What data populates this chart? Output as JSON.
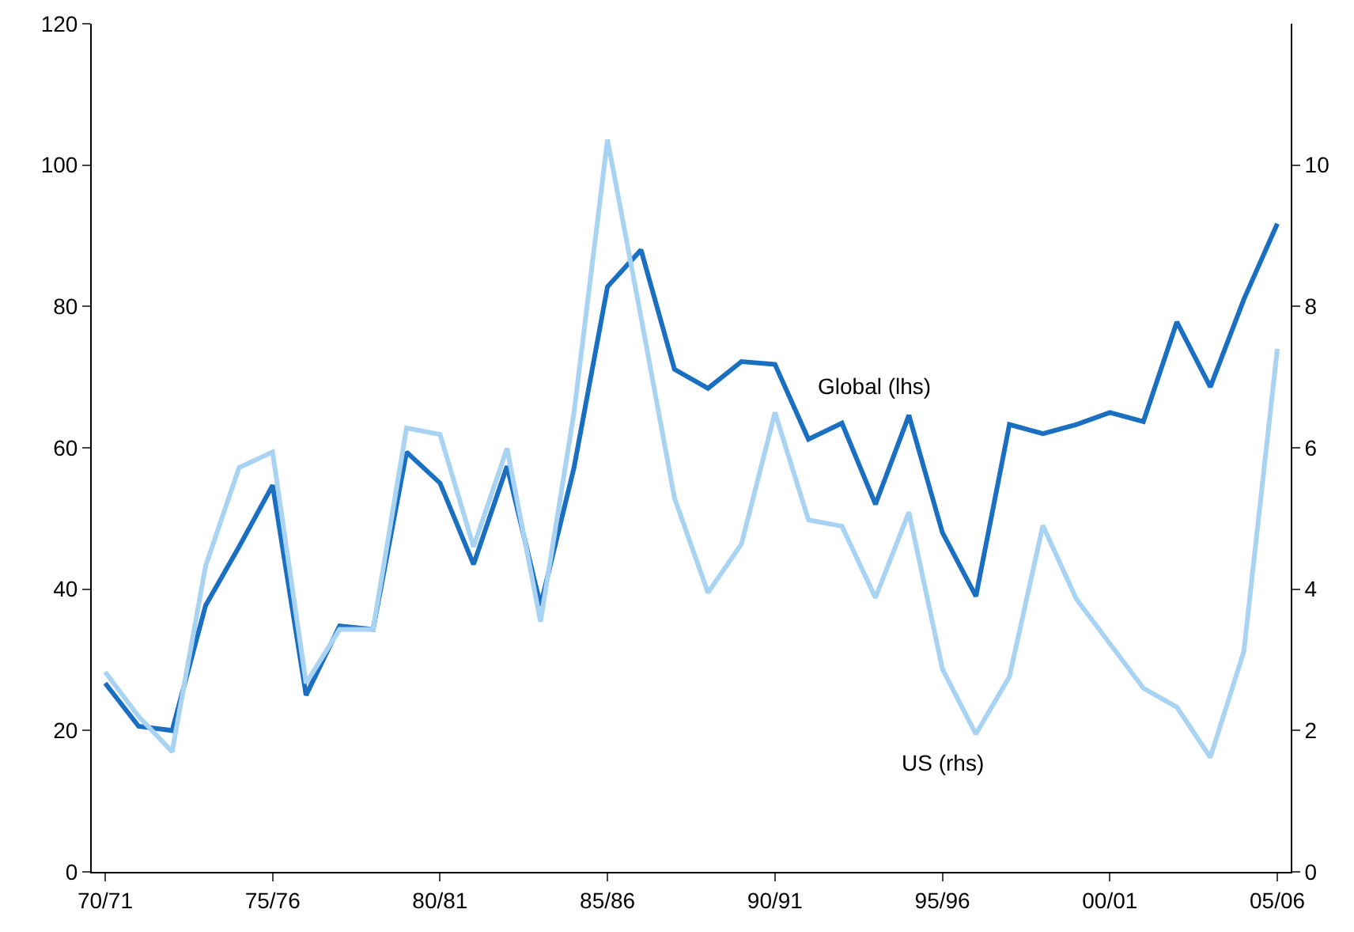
{
  "chart_data": {
    "type": "line",
    "categories": [
      "70/71",
      null,
      null,
      null,
      null,
      "75/76",
      null,
      null,
      null,
      null,
      "80/81",
      null,
      null,
      null,
      null,
      "85/86",
      null,
      null,
      null,
      null,
      "90/91",
      null,
      null,
      null,
      null,
      "95/96",
      null,
      null,
      null,
      null,
      "00/01",
      null,
      null,
      null,
      null,
      "05/06"
    ],
    "series": [
      {
        "name": "Global (lhs)",
        "color": "#1a6fc0",
        "values": [
          26.7,
          20.6,
          20,
          37.7,
          46,
          54.7,
          25,
          34.8,
          34.3,
          59.4,
          55,
          43.5,
          57.4,
          37.7,
          57.2,
          82.8,
          88,
          71.1,
          68.4,
          72.2,
          71.8,
          61.2,
          63.5,
          52,
          64.6,
          48,
          39,
          63.3,
          62,
          63.3,
          65,
          63.7,
          77.8,
          68.6,
          81,
          91.7
        ]
      },
      {
        "name": "US (rhs)",
        "color": "#a9d3f2",
        "axis": "y2",
        "values": [
          2.83,
          2.2,
          1.7,
          4.33,
          5.72,
          5.94,
          2.67,
          3.43,
          3.43,
          6.28,
          6.19,
          4.6,
          5.99,
          3.54,
          6.5,
          10.36,
          7.85,
          5.29,
          3.95,
          4.64,
          6.5,
          4.98,
          4.89,
          3.88,
          5.09,
          2.87,
          1.95,
          2.76,
          4.9,
          3.86,
          3.23,
          2.6,
          2.33,
          1.62,
          3.12,
          7.4
        ]
      }
    ],
    "ylim": [
      0,
      120
    ],
    "yticks": [
      0,
      20,
      40,
      60,
      80,
      100,
      120
    ],
    "y2lim": [
      0,
      12
    ],
    "y2ticks": [
      0,
      2,
      4,
      6,
      8,
      10
    ],
    "grid": false,
    "legend": false,
    "marker": "none",
    "line_style": "solid"
  }
}
